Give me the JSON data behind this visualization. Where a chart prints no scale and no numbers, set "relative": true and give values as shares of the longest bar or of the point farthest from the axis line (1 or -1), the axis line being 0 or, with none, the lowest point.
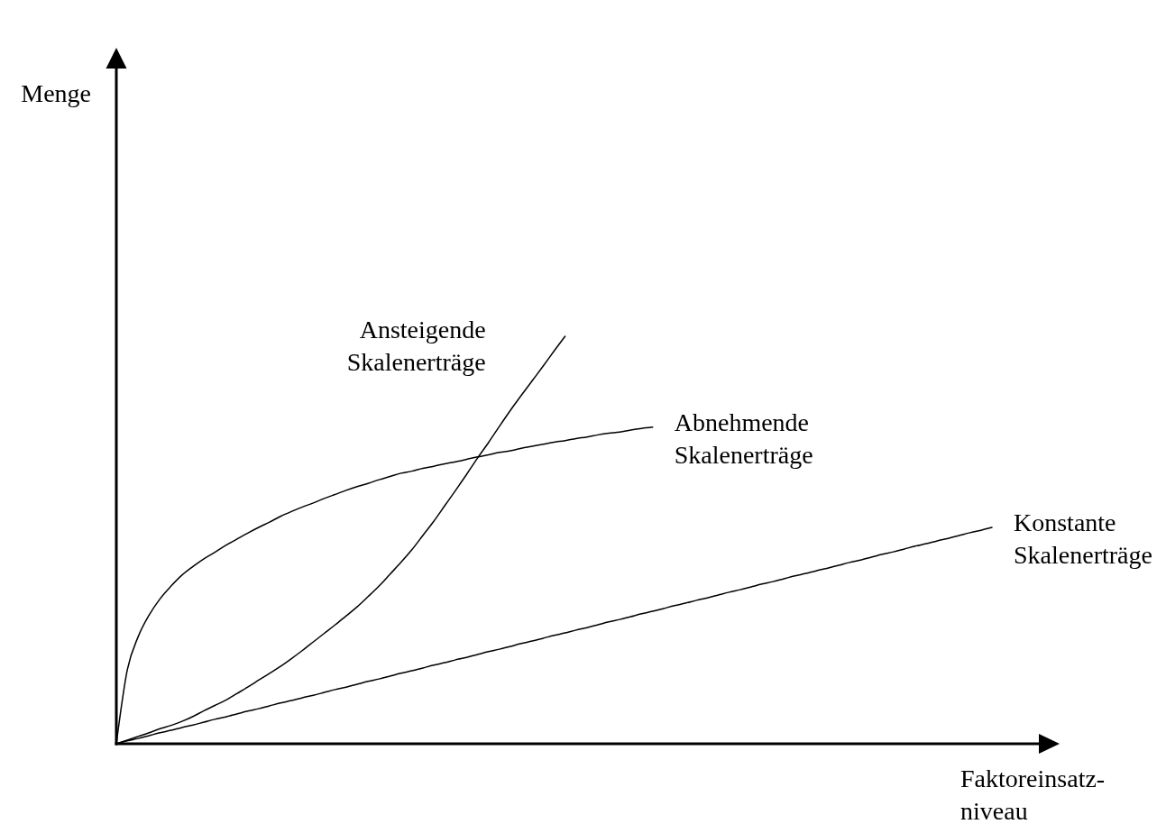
{
  "chart_data": {
    "type": "line",
    "relative": true,
    "xlabel": "Faktoreinsatz-\nniveau",
    "annotations": [
      "Menge"
    ],
    "categories": [
      null,
      null,
      null,
      null,
      null,
      null,
      null,
      null,
      null,
      null,
      null,
      null,
      null,
      null,
      null,
      null,
      null,
      null,
      null,
      null,
      null,
      null,
      null,
      null,
      null,
      null,
      null,
      null,
      null,
      null,
      null,
      null,
      null,
      null,
      null,
      null,
      null,
      null,
      null,
      null,
      null,
      null,
      null,
      null,
      null,
      null,
      null,
      null,
      null,
      null,
      null,
      null,
      null,
      null,
      null,
      null,
      null,
      null,
      null,
      null,
      null,
      null,
      null,
      null,
      null,
      null,
      null,
      null,
      null,
      null,
      null,
      null,
      null,
      null,
      null,
      null,
      null,
      null,
      null,
      null,
      null
    ],
    "series": [
      {
        "name": "Ansteigende\nSkalenerträge",
        "color": "#000000",
        "values": [
          0,
          0.009,
          0.018,
          0.027,
          0.037,
          0.045,
          0.055,
          0.067,
          0.081,
          0.094,
          0.107,
          0.123,
          0.139,
          0.156,
          0.173,
          0.19,
          0.209,
          0.229,
          0.25,
          0.271,
          0.292,
          0.314,
          0.336,
          0.361,
          0.387,
          0.416,
          0.445,
          0.476,
          0.511,
          0.546,
          0.584,
          0.622,
          0.661,
          0.701,
          0.739,
          0.779,
          0.818,
          0.855,
          0.891,
          0.927,
          0.964,
          1,
          null,
          null,
          null,
          null,
          null,
          null,
          null,
          null,
          null,
          null,
          null,
          null,
          null,
          null,
          null,
          null,
          null,
          null,
          null,
          null,
          null,
          null,
          null,
          null,
          null,
          null,
          null,
          null,
          null,
          null,
          null,
          null,
          null,
          null,
          null,
          null,
          null,
          null,
          null
        ]
      },
      {
        "name": "Abnehmende\nSkalenerträge",
        "color": "#000000",
        "values": [
          0,
          0.181,
          0.263,
          0.316,
          0.356,
          0.387,
          0.414,
          0.435,
          0.454,
          0.47,
          0.487,
          0.502,
          0.517,
          0.531,
          0.544,
          0.558,
          0.57,
          0.581,
          0.591,
          0.602,
          0.612,
          0.622,
          0.631,
          0.639,
          0.648,
          0.656,
          0.664,
          0.669,
          0.676,
          0.681,
          0.687,
          0.692,
          0.698,
          0.704,
          0.709,
          0.715,
          0.719,
          0.725,
          0.73,
          0.735,
          0.74,
          0.744,
          0.749,
          0.753,
          0.758,
          0.762,
          0.765,
          0.77,
          0.774,
          0.777,
          null,
          null,
          null,
          null,
          null,
          null,
          null,
          null,
          null,
          null,
          null,
          null,
          null,
          null,
          null,
          null,
          null,
          null,
          null,
          null,
          null,
          null,
          null,
          null,
          null,
          null,
          null,
          null,
          null,
          null,
          null
        ]
      },
      {
        "name": "Konstante\nSkalenerträge",
        "color": "#000000",
        "values": [
          0,
          0.007,
          0.013,
          0.02,
          0.027,
          0.033,
          0.04,
          0.046,
          0.053,
          0.06,
          0.066,
          0.073,
          0.08,
          0.086,
          0.093,
          0.1,
          0.106,
          0.113,
          0.119,
          0.126,
          0.133,
          0.139,
          0.146,
          0.153,
          0.159,
          0.166,
          0.173,
          0.179,
          0.186,
          0.193,
          0.199,
          0.206,
          0.212,
          0.219,
          0.226,
          0.232,
          0.239,
          0.246,
          0.252,
          0.259,
          0.266,
          0.272,
          0.279,
          0.285,
          0.292,
          0.299,
          0.305,
          0.312,
          0.319,
          0.325,
          0.332,
          0.339,
          0.345,
          0.352,
          0.358,
          0.365,
          0.372,
          0.378,
          0.385,
          0.392,
          0.398,
          0.405,
          0.412,
          0.418,
          0.425,
          0.431,
          0.438,
          0.445,
          0.451,
          0.458,
          0.465,
          0.471,
          0.478,
          0.485,
          0.491,
          0.498,
          0.504,
          0.511,
          0.518,
          0.524,
          0.531
        ]
      }
    ]
  }
}
